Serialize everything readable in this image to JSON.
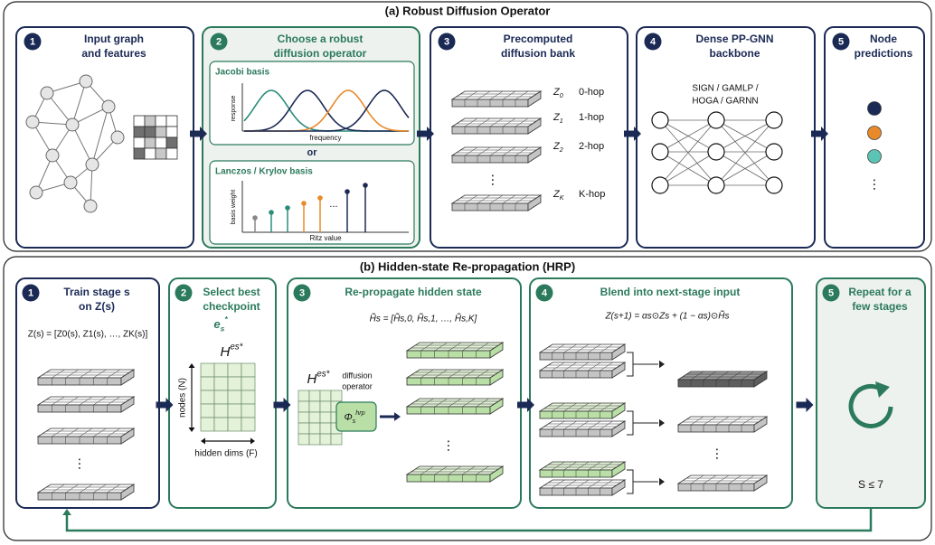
{
  "panel_a": {
    "title": "(a) Robust Diffusion Operator",
    "steps": [
      {
        "number": "1",
        "title": [
          "Input graph",
          "and features"
        ]
      },
      {
        "number": "2",
        "title": [
          "Choose a robust",
          "diffusion operator"
        ],
        "jacobi": {
          "title": "Jacobi basis",
          "y_label": "response",
          "x_label": "frequency"
        },
        "separator": "or",
        "krylov": {
          "title": "Lanczos / Krylov basis",
          "y_label": "basis weight",
          "x_label": "Ritz value",
          "ellipsis": "..."
        }
      },
      {
        "number": "3",
        "title": [
          "Precomputed",
          "diffusion bank"
        ],
        "bank": [
          {
            "symbol": {
              "base": "Z",
              "sub": "0"
            },
            "hop": "0-hop"
          },
          {
            "symbol": {
              "base": "Z",
              "sub": "1"
            },
            "hop": "1-hop"
          },
          {
            "symbol": {
              "base": "Z",
              "sub": "2"
            },
            "hop": "2-hop"
          },
          {
            "symbol": {
              "base": "Z",
              "sub": "K"
            },
            "hop": "K-hop"
          }
        ],
        "ellipsis": "⋮"
      },
      {
        "number": "4",
        "title": [
          "Dense PP-GNN",
          "backbone"
        ],
        "models": [
          "SIGN / GAMLP /",
          "HOGA / GARNN"
        ]
      },
      {
        "number": "5",
        "title": [
          "Node",
          "predictions"
        ],
        "ellipsis": "⋮"
      }
    ]
  },
  "panel_b": {
    "title": "(b) Hidden-state Re-propagation (HRP)",
    "steps": [
      {
        "number": "1",
        "title": [
          "Train stage s",
          "on Z(s)"
        ],
        "formula": "Z(s) = [Z0(s), Z1(s), …, ZK(s)]",
        "ellipsis": "⋮"
      },
      {
        "number": "2",
        "title": [
          "Select best",
          "checkpoint"
        ],
        "checkpoint": {
          "base": "e",
          "sub": "s",
          "sup": "*"
        },
        "hidden": {
          "base": "H",
          "sup": "es*"
        },
        "y_label": "nodes (N)",
        "x_label": "hidden dims (F)"
      },
      {
        "number": "3",
        "title": [
          "Re-propagate hidden state"
        ],
        "formula": "H̃s = [H̃s,0, H̃s,1, …, H̃s,K]",
        "hidden": {
          "base": "H",
          "sup": "es*"
        },
        "operator_label": [
          "diffusion",
          "operator"
        ],
        "operator": {
          "base": "Φ",
          "sub": "s",
          "sup": "hrp"
        },
        "ellipsis": "⋮"
      },
      {
        "number": "4",
        "title": [
          "Blend into next-stage input"
        ],
        "formula": "Z(s+1) = αs⊙Zs + (1 − αs)⊙H̃s",
        "ellipsis": "⋮"
      },
      {
        "number": "5",
        "title": [
          "Repeat for a",
          "few stages"
        ],
        "limit": "S ≤ 7"
      }
    ]
  }
}
